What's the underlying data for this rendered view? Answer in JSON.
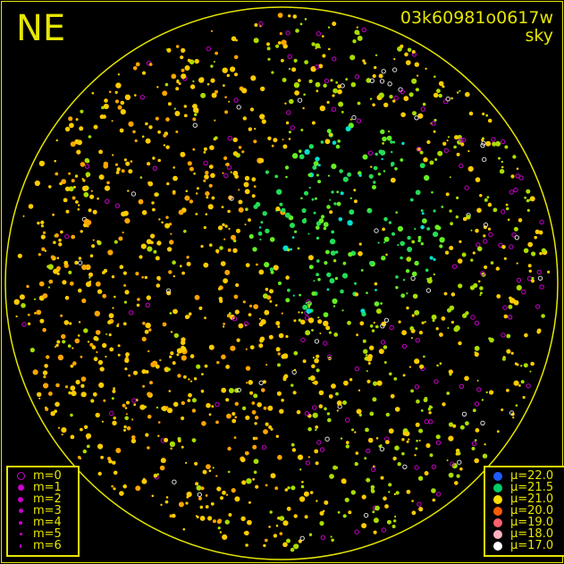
{
  "header": {
    "direction": "NE",
    "title": "03k60981o0617w",
    "subtitle": "sky"
  },
  "magnitude_legend": [
    {
      "label": "m=0",
      "style": "ring"
    },
    {
      "label": "m=1",
      "style": "dot"
    },
    {
      "label": "m=2",
      "style": "dot"
    },
    {
      "label": "m=3",
      "style": "dot"
    },
    {
      "label": "m=4",
      "style": "dot"
    },
    {
      "label": "m=5",
      "style": "dot"
    },
    {
      "label": "m=6",
      "style": "dot"
    }
  ],
  "magnitude_color": "#cc00cc",
  "brightness_legend": [
    {
      "label": "μ=22.0",
      "color": "#1e5cff"
    },
    {
      "label": "μ=21.5",
      "color": "#00cc66"
    },
    {
      "label": "μ=21.0",
      "color": "#ffdd00"
    },
    {
      "label": "μ=20.0",
      "color": "#ff5a00"
    },
    {
      "label": "μ=19.0",
      "color": "#ff6070"
    },
    {
      "label": "μ=18.0",
      "color": "#ffb0c0"
    },
    {
      "label": "μ=17.0",
      "color": "#ffffff"
    }
  ],
  "accent": "#e6e600"
}
